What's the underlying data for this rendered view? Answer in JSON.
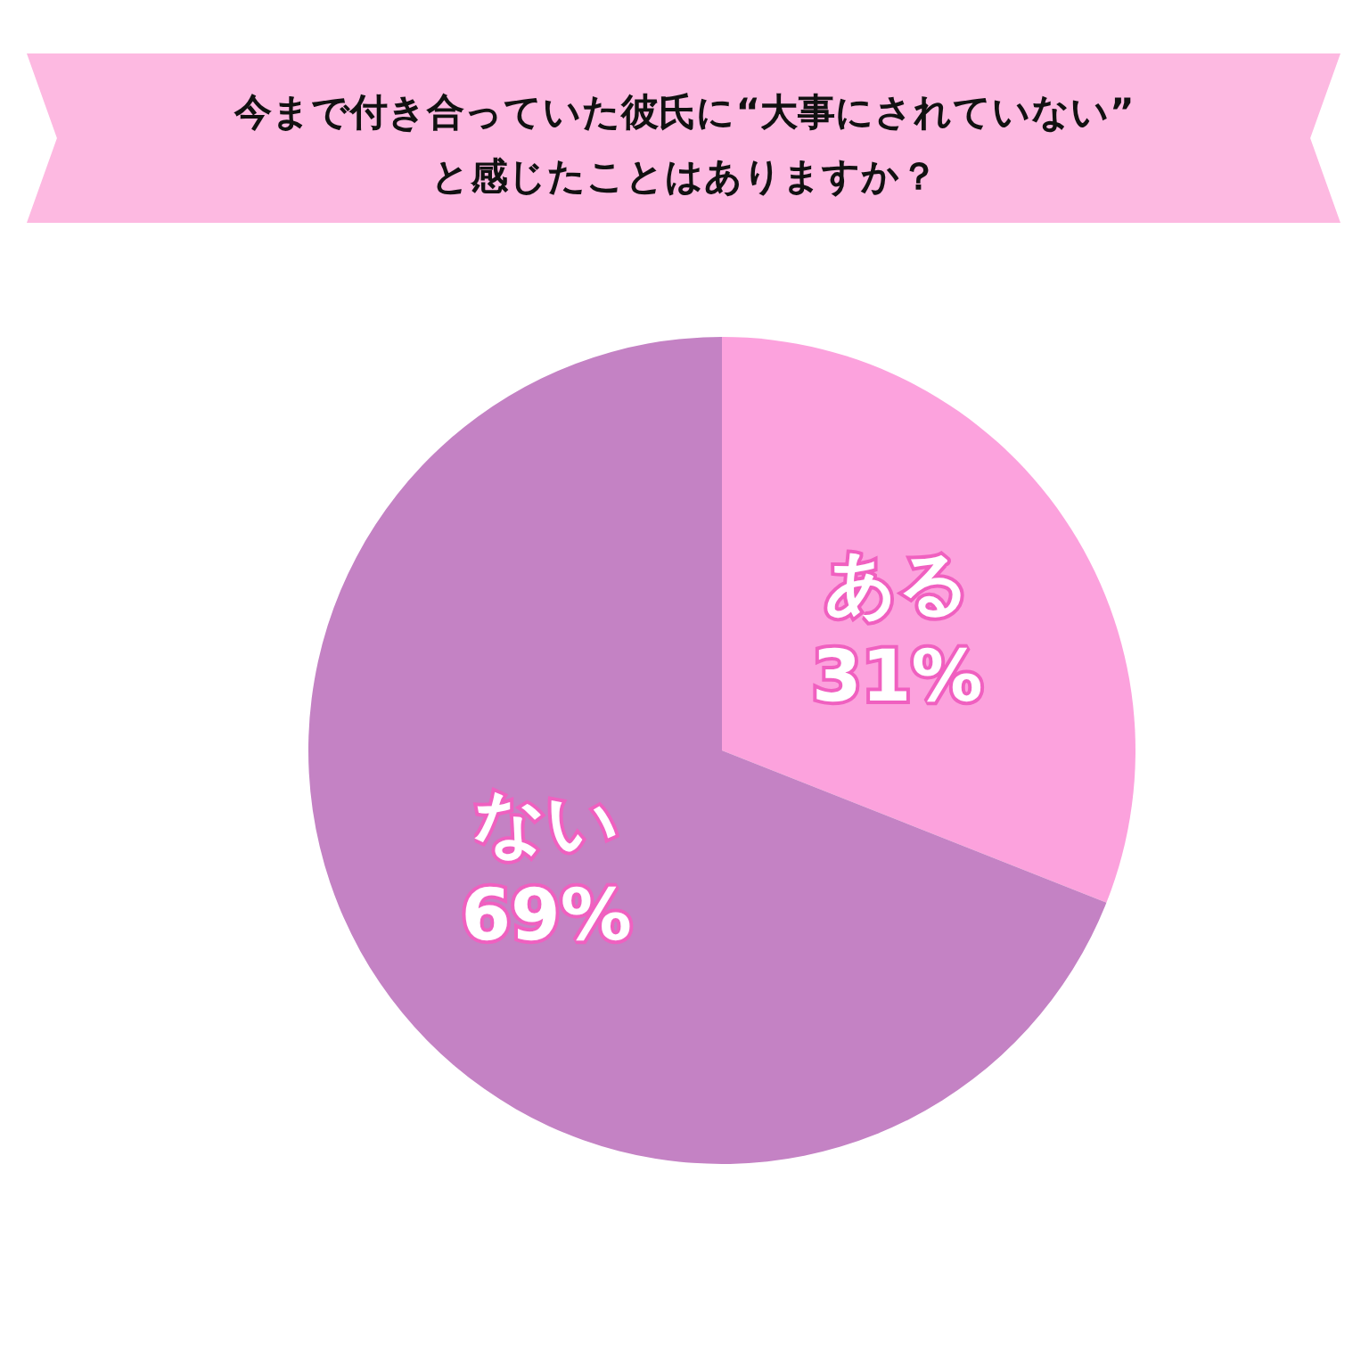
{
  "chart_data": {
    "type": "pie",
    "title": "今まで付き合っていた彼氏に“大事にされていない”\nと感じたことはありますか？",
    "categories": [
      "ある",
      "ない"
    ],
    "values": [
      31,
      69
    ],
    "colors": [
      "#fca2dd",
      "#c482c4"
    ],
    "value_labels": [
      "31%",
      "69%"
    ],
    "legend": false
  }
}
